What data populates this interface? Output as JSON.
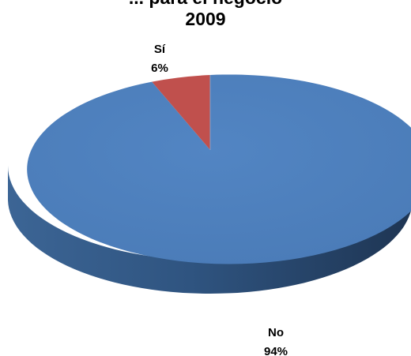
{
  "chart_data": {
    "type": "pie",
    "title_lines": [
      "... para el negocio",
      "2009"
    ],
    "slices": [
      {
        "category": "Sí",
        "percent_label": "6%",
        "value": 6,
        "color": "#c0504d"
      },
      {
        "category": "No",
        "percent_label": "94%",
        "value": 94,
        "color": "#4f81bd"
      }
    ],
    "legend": "none",
    "three_d": true
  }
}
